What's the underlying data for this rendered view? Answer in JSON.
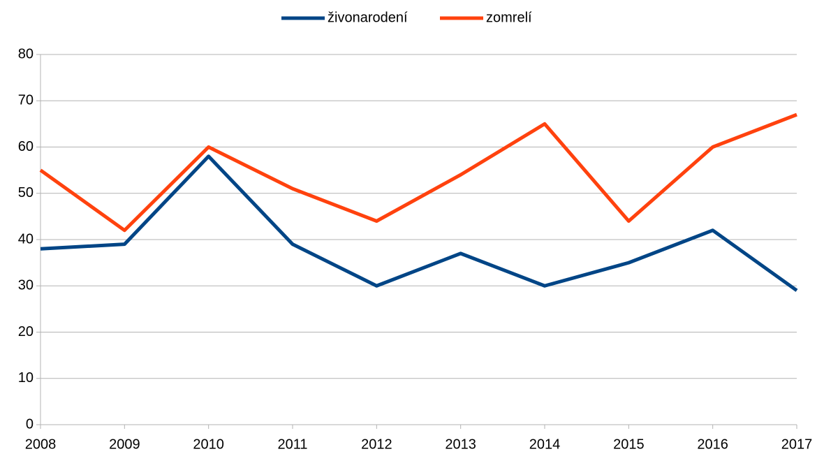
{
  "chart_data": {
    "type": "line",
    "categories": [
      "2008",
      "2009",
      "2010",
      "2011",
      "2012",
      "2013",
      "2014",
      "2015",
      "2016",
      "2017"
    ],
    "series": [
      {
        "name": "živonarodení",
        "color": "#004586",
        "values": [
          38,
          39,
          58,
          39,
          30,
          37,
          30,
          35,
          42,
          29
        ]
      },
      {
        "name": "zomrelí",
        "color": "#ff420e",
        "values": [
          55,
          42,
          60,
          51,
          44,
          54,
          65,
          44,
          60,
          67
        ]
      }
    ],
    "ylim": [
      0,
      80
    ],
    "yticks": [
      0,
      10,
      20,
      30,
      40,
      50,
      60,
      70,
      80
    ],
    "grid": true,
    "legend": "top"
  }
}
